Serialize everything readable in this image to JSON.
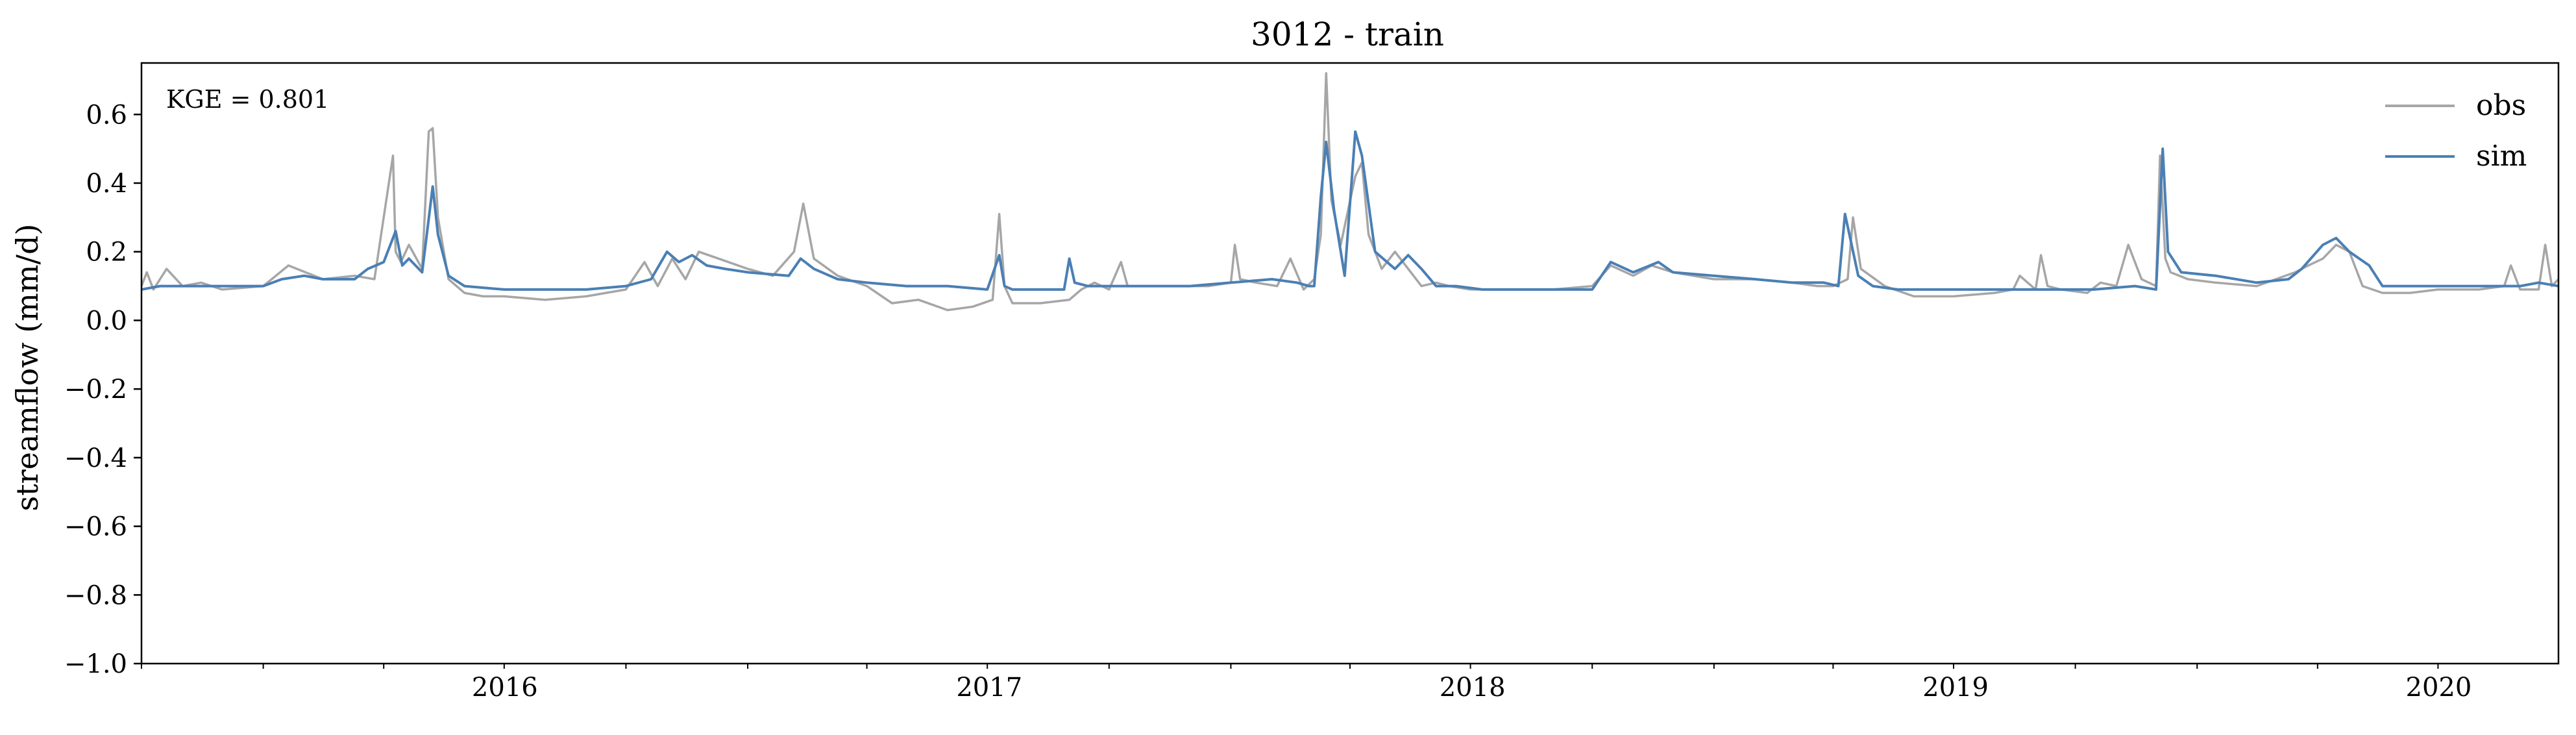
{
  "chart_data": {
    "type": "line",
    "title": "3012 - train",
    "xlabel": "",
    "ylabel": "streamflow (mm/d)",
    "annotation": "KGE = 0.801",
    "xlim": [
      "2015-10-01",
      "2020-09-30"
    ],
    "ylim": [
      -1.0,
      0.75
    ],
    "yticks": [
      0.6,
      0.4,
      0.2,
      0.0,
      -0.2,
      -0.4,
      -0.6,
      -0.8,
      -1.0
    ],
    "ytick_labels": [
      "0.6",
      "0.4",
      "0.2",
      "0.0",
      "−0.2",
      "−0.4",
      "−0.6",
      "−0.8",
      "−1.0"
    ],
    "xtick_labels": [
      "2016",
      "2017",
      "2018",
      "2019",
      "2020"
    ],
    "xtick_dates": [
      "2016-01-01",
      "2017-01-01",
      "2018-01-01",
      "2019-01-01",
      "2020-01-01"
    ],
    "grid": false,
    "legend_position": "top-right",
    "series": [
      {
        "name": "obs",
        "color": "#a6a6a6",
        "x": [
          "2015-10-01",
          "2015-10-05",
          "2015-10-10",
          "2015-10-20",
          "2015-11-01",
          "2015-11-15",
          "2015-12-01",
          "2016-01-01",
          "2016-01-20",
          "2016-02-15",
          "2016-03-10",
          "2016-03-25",
          "2016-04-08",
          "2016-04-10",
          "2016-04-14",
          "2016-04-20",
          "2016-04-30",
          "2016-05-05",
          "2016-05-08",
          "2016-05-12",
          "2016-05-20",
          "2016-06-01",
          "2016-06-15",
          "2016-07-01",
          "2016-08-01",
          "2016-09-01",
          "2016-10-01",
          "2016-10-15",
          "2016-10-25",
          "2016-11-05",
          "2016-11-15",
          "2016-11-25",
          "2016-12-10",
          "2017-01-01",
          "2017-01-20",
          "2017-02-05",
          "2017-02-12",
          "2017-02-20",
          "2017-03-10",
          "2017-04-01",
          "2017-04-20",
          "2017-05-10",
          "2017-06-01",
          "2017-06-20",
          "2017-07-05",
          "2017-07-10",
          "2017-07-14",
          "2017-07-20",
          "2017-08-10",
          "2017-09-01",
          "2017-09-10",
          "2017-09-20",
          "2017-10-01",
          "2017-10-10",
          "2017-10-15",
          "2017-10-20",
          "2017-11-15",
          "2017-12-15",
          "2018-01-01",
          "2018-01-04",
          "2018-01-08",
          "2018-01-20",
          "2018-02-05",
          "2018-02-15",
          "2018-02-25",
          "2018-03-05",
          "2018-03-10",
          "2018-03-14",
          "2018-03-18",
          "2018-03-25",
          "2018-04-05",
          "2018-04-10",
          "2018-04-15",
          "2018-04-25",
          "2018-05-05",
          "2018-05-15",
          "2018-05-25",
          "2018-06-05",
          "2018-06-15",
          "2018-07-01",
          "2018-08-01",
          "2018-09-01",
          "2018-10-01",
          "2018-10-15",
          "2018-11-01",
          "2018-11-15",
          "2018-12-01",
          "2019-01-01",
          "2019-02-01",
          "2019-03-01",
          "2019-03-20",
          "2019-04-01",
          "2019-04-12",
          "2019-04-16",
          "2019-04-22",
          "2019-05-10",
          "2019-06-01",
          "2019-07-01",
          "2019-08-01",
          "2019-08-15",
          "2019-08-20",
          "2019-09-01",
          "2019-09-05",
          "2019-09-10",
          "2019-09-20",
          "2019-10-10",
          "2019-10-20",
          "2019-11-01",
          "2019-11-10",
          "2019-11-20",
          "2019-12-01",
          "2019-12-04",
          "2019-12-08",
          "2019-12-12",
          "2019-12-25",
          "2020-01-15",
          "2020-02-15",
          "2020-03-15",
          "2020-03-25",
          "2020-04-05",
          "2020-04-15",
          "2020-04-25",
          "2020-05-05",
          "2020-05-20",
          "2020-06-10",
          "2020-07-01",
          "2020-08-01",
          "2020-08-20",
          "2020-08-25",
          "2020-09-01",
          "2020-09-15",
          "2020-09-20",
          "2020-09-25",
          "2020-09-30"
        ],
        "y": [
          0.1,
          0.14,
          0.09,
          0.15,
          0.1,
          0.11,
          0.09,
          0.1,
          0.16,
          0.12,
          0.13,
          0.12,
          0.48,
          0.2,
          0.17,
          0.22,
          0.15,
          0.55,
          0.56,
          0.3,
          0.12,
          0.08,
          0.07,
          0.07,
          0.06,
          0.07,
          0.09,
          0.17,
          0.1,
          0.18,
          0.12,
          0.2,
          0.18,
          0.15,
          0.13,
          0.2,
          0.34,
          0.18,
          0.13,
          0.1,
          0.05,
          0.06,
          0.03,
          0.04,
          0.06,
          0.31,
          0.1,
          0.05,
          0.05,
          0.06,
          0.09,
          0.11,
          0.09,
          0.17,
          0.1,
          0.1,
          0.1,
          0.1,
          0.11,
          0.22,
          0.12,
          0.11,
          0.1,
          0.18,
          0.09,
          0.12,
          0.25,
          0.72,
          0.35,
          0.22,
          0.42,
          0.46,
          0.25,
          0.15,
          0.2,
          0.15,
          0.1,
          0.11,
          0.1,
          0.09,
          0.09,
          0.09,
          0.1,
          0.16,
          0.13,
          0.16,
          0.14,
          0.12,
          0.12,
          0.11,
          0.1,
          0.1,
          0.12,
          0.3,
          0.15,
          0.1,
          0.07,
          0.07,
          0.08,
          0.09,
          0.13,
          0.09,
          0.19,
          0.1,
          0.09,
          0.08,
          0.11,
          0.1,
          0.22,
          0.12,
          0.1,
          0.48,
          0.18,
          0.14,
          0.12,
          0.11,
          0.1,
          0.14,
          0.16,
          0.18,
          0.22,
          0.2,
          0.1,
          0.08,
          0.08,
          0.09,
          0.09,
          0.1,
          0.16,
          0.09,
          0.09,
          0.22,
          0.1,
          0.12
        ]
      },
      {
        "name": "sim",
        "color": "#4a7fb4",
        "x": [
          "2015-10-01",
          "2015-10-15",
          "2015-11-01",
          "2015-12-01",
          "2016-01-01",
          "2016-01-15",
          "2016-02-01",
          "2016-02-15",
          "2016-03-10",
          "2016-03-20",
          "2016-04-01",
          "2016-04-10",
          "2016-04-15",
          "2016-04-20",
          "2016-04-30",
          "2016-05-08",
          "2016-05-12",
          "2016-05-20",
          "2016-06-01",
          "2016-07-01",
          "2016-08-01",
          "2016-09-01",
          "2016-10-01",
          "2016-10-20",
          "2016-11-01",
          "2016-11-10",
          "2016-11-20",
          "2016-12-01",
          "2016-12-15",
          "2017-01-01",
          "2017-02-01",
          "2017-02-10",
          "2017-02-20",
          "2017-03-10",
          "2017-04-01",
          "2017-05-01",
          "2017-06-01",
          "2017-07-01",
          "2017-07-10",
          "2017-07-14",
          "2017-07-20",
          "2017-08-10",
          "2017-08-28",
          "2017-09-01",
          "2017-09-05",
          "2017-09-15",
          "2017-10-01",
          "2017-11-01",
          "2017-12-01",
          "2018-01-01",
          "2018-02-01",
          "2018-02-20",
          "2018-03-01",
          "2018-03-05",
          "2018-03-10",
          "2018-03-14",
          "2018-03-20",
          "2018-03-28",
          "2018-04-05",
          "2018-04-10",
          "2018-04-20",
          "2018-05-05",
          "2018-05-15",
          "2018-05-25",
          "2018-06-05",
          "2018-06-20",
          "2018-07-10",
          "2018-08-01",
          "2018-09-01",
          "2018-10-01",
          "2018-10-15",
          "2018-11-01",
          "2018-11-20",
          "2018-12-01",
          "2019-01-01",
          "2019-02-01",
          "2019-03-01",
          "2019-03-25",
          "2019-04-05",
          "2019-04-10",
          "2019-04-15",
          "2019-04-20",
          "2019-05-01",
          "2019-05-20",
          "2019-06-15",
          "2019-07-15",
          "2019-08-15",
          "2019-09-15",
          "2019-10-15",
          "2019-11-15",
          "2019-12-01",
          "2019-12-06",
          "2019-12-10",
          "2019-12-20",
          "2020-01-15",
          "2020-02-15",
          "2020-03-10",
          "2020-03-20",
          "2020-04-05",
          "2020-04-15",
          "2020-04-25",
          "2020-05-10",
          "2020-05-20",
          "2020-06-10",
          "2020-07-01",
          "2020-08-01",
          "2020-09-01",
          "2020-09-15",
          "2020-09-30"
        ],
        "y": [
          0.09,
          0.1,
          0.1,
          0.1,
          0.1,
          0.12,
          0.13,
          0.12,
          0.12,
          0.15,
          0.17,
          0.26,
          0.16,
          0.18,
          0.14,
          0.39,
          0.25,
          0.13,
          0.1,
          0.09,
          0.09,
          0.09,
          0.1,
          0.12,
          0.2,
          0.17,
          0.19,
          0.16,
          0.15,
          0.14,
          0.13,
          0.18,
          0.15,
          0.12,
          0.11,
          0.1,
          0.1,
          0.09,
          0.19,
          0.1,
          0.09,
          0.09,
          0.09,
          0.18,
          0.11,
          0.1,
          0.1,
          0.1,
          0.1,
          0.11,
          0.12,
          0.11,
          0.1,
          0.1,
          0.36,
          0.52,
          0.32,
          0.13,
          0.55,
          0.48,
          0.2,
          0.15,
          0.19,
          0.15,
          0.1,
          0.1,
          0.09,
          0.09,
          0.09,
          0.09,
          0.17,
          0.14,
          0.17,
          0.14,
          0.13,
          0.12,
          0.11,
          0.11,
          0.1,
          0.31,
          0.22,
          0.13,
          0.1,
          0.09,
          0.09,
          0.09,
          0.09,
          0.09,
          0.09,
          0.1,
          0.09,
          0.5,
          0.2,
          0.14,
          0.13,
          0.11,
          0.12,
          0.15,
          0.22,
          0.24,
          0.2,
          0.16,
          0.1,
          0.1,
          0.1,
          0.1,
          0.1,
          0.11,
          0.1
        ]
      }
    ]
  }
}
